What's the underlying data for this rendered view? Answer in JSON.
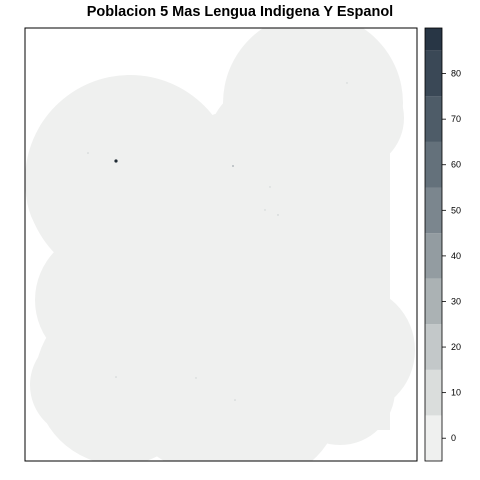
{
  "title": "Poblacion 5 Mas Lengua Indigena Y Espanol",
  "map": {
    "fill_color": "#eff0ef",
    "frame_color": "#000000",
    "background": "#ffffff",
    "highlight_dot_color": "#1f2a33"
  },
  "legend": {
    "min": -5,
    "max": 90,
    "class_breaks": [
      -5,
      5,
      15,
      25,
      35,
      45,
      55,
      65,
      75,
      85,
      90
    ],
    "class_colors": [
      "#eff0ef",
      "#dadddc",
      "#c3c8c9",
      "#abb2b4",
      "#939ca1",
      "#7b868e",
      "#64717b",
      "#4e5c68",
      "#3a4856",
      "#283645"
    ],
    "ticks": [
      0,
      10,
      20,
      30,
      40,
      50,
      60,
      70,
      80
    ],
    "tick_labels": [
      "0",
      "10",
      "20",
      "30",
      "40",
      "50",
      "60",
      "70",
      "80"
    ]
  }
}
